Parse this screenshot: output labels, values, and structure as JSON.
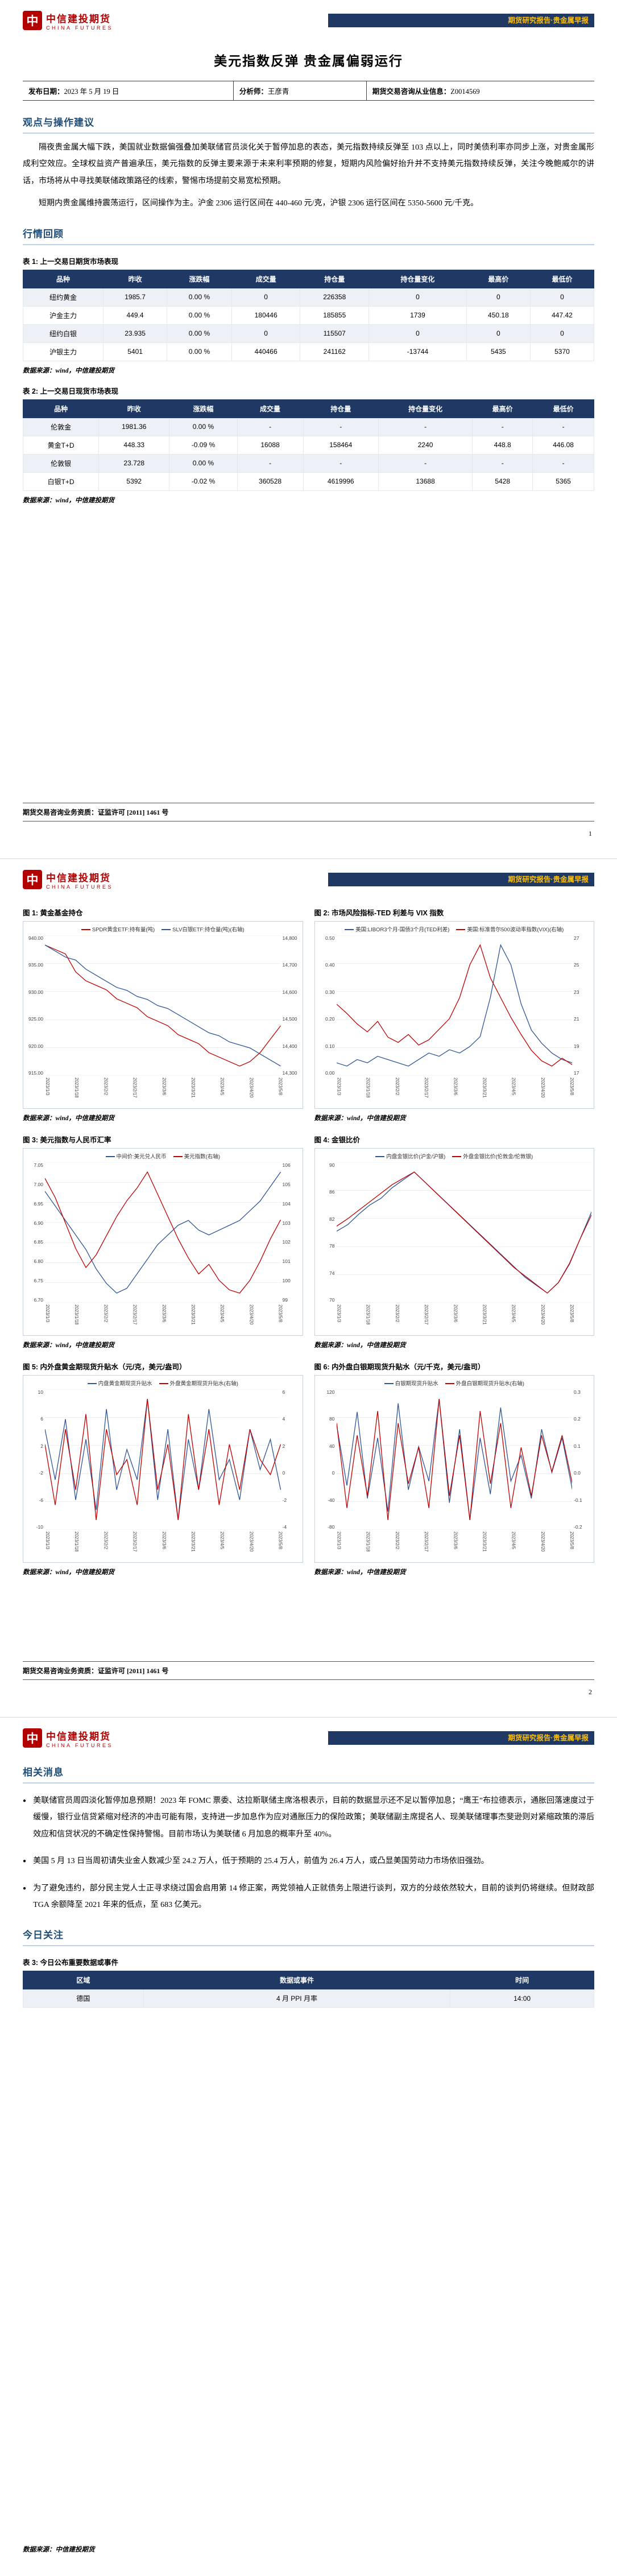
{
  "brand": {
    "glyph": "中",
    "name_cn": "中信建投期货",
    "name_en": "CHINA FUTURES",
    "band_text": "期货研究报告·贵金属早报"
  },
  "colors": {
    "band_navy": "#1f3864",
    "band_gold": "#ffc000",
    "brand_red": "#b30000",
    "heading_blue": "#1f4e79",
    "series_red": "#c00000",
    "series_blue": "#2f5597"
  },
  "footer": {
    "license": "期货交易咨询业务资质：证监许可 [2011] 1461 号",
    "page1_number": "1",
    "page2_number": "2",
    "source_note": "数据来源：中信建投期货"
  },
  "page1": {
    "title": "美元指数反弹  贵金属偏弱运行",
    "meta": {
      "publish_label": "发布日期：",
      "publish_value": "2023 年 5 月 19 日",
      "analyst_label": "分析师：",
      "analyst_value": "王彦青",
      "license_label": "期货交易咨询从业信息：",
      "license_value": "Z0014569"
    },
    "section1_title": "观点与操作建议",
    "paragraphs": [
      "隔夜贵金属大幅下跌，美国就业数据偏强叠加美联储官员淡化关于暂停加息的表态，美元指数持续反弹至 103 点以上，同时美债利率亦同步上涨，对贵金属形成利空效应。全球权益资产普遍承压，美元指数的反弹主要来源于未来利率预期的修复，短期内风险偏好抬升并不支持美元指数持续反弹，关注今晚鲍威尔的讲话，市场将从中寻找美联储政策路径的线索，警惕市场提前交易宽松预期。",
      "短期内贵金属维持震荡运行，区间操作为主。沪金 2306 运行区间在 440-460 元/克，沪银 2306 运行区间在 5350-5600 元/千克。"
    ],
    "section2_title": "行情回顾",
    "source_note": "数据来源：wind，中信建投期货",
    "table1": {
      "caption": "表 1: 上一交易日期货市场表现",
      "columns": [
        "品种",
        "昨收",
        "涨跌幅",
        "成交量",
        "持仓量",
        "持仓量变化",
        "最高价",
        "最低价"
      ],
      "rows": [
        [
          "纽约黄金",
          "1985.7",
          "0.00 %",
          "0",
          "226358",
          "0",
          "0",
          "0"
        ],
        [
          "沪金主力",
          "449.4",
          "0.00 %",
          "180446",
          "185855",
          "1739",
          "450.18",
          "447.42"
        ],
        [
          "纽约白银",
          "23.935",
          "0.00 %",
          "0",
          "115507",
          "0",
          "0",
          "0"
        ],
        [
          "沪银主力",
          "5401",
          "0.00 %",
          "440466",
          "241162",
          "-13744",
          "5435",
          "5370"
        ]
      ]
    },
    "table2": {
      "caption": "表 2: 上一交易日现货市场表现",
      "columns": [
        "品种",
        "昨收",
        "涨跌幅",
        "成交量",
        "持仓量",
        "持仓量变化",
        "最高价",
        "最低价"
      ],
      "rows": [
        [
          "伦敦金",
          "1981.36",
          "0.00 %",
          "-",
          "-",
          "-",
          "-",
          "-"
        ],
        [
          "黄金T+D",
          "448.33",
          "-0.09 %",
          "16088",
          "158464",
          "2240",
          "448.8",
          "446.08"
        ],
        [
          "伦敦银",
          "23.728",
          "0.00 %",
          "-",
          "-",
          "-",
          "-",
          "-"
        ],
        [
          "白银T+D",
          "5392",
          "-0.02 %",
          "360528",
          "4619996",
          "13688",
          "5428",
          "5365"
        ]
      ]
    }
  },
  "page2": {
    "charts": [
      {
        "type": "line",
        "caption": "图 1: 黄金基金持仓",
        "source": "数据来源：wind，中信建投期货",
        "left_ticks": [
          "940.00",
          "935.00",
          "930.00",
          "925.00",
          "920.00",
          "915.00"
        ],
        "right_ticks": [
          "14,800",
          "14,700",
          "14,600",
          "14,500",
          "14,400",
          "14,300"
        ],
        "x_labels": [
          "2023/1/3",
          "2023/1/18",
          "2023/2/2",
          "2023/2/17",
          "2023/3/6",
          "2023/3/21",
          "2023/4/5",
          "2023/4/20",
          "2023/5/8"
        ],
        "series": [
          {
            "name": "SPDR黄金ETF:持有量(吨)",
            "color": "#c00000",
            "axis": "left",
            "values": [
              934,
              933.5,
              933,
              931,
              930,
              929.5,
              929,
              928,
              927.5,
              927,
              926,
              925.5,
              925,
              924,
              923.5,
              923,
              922,
              921.5,
              921,
              920.5,
              921,
              922,
              923.5,
              925
            ]
          },
          {
            "name": "SLV白银ETF:持仓量(吨)(右轴)",
            "color": "#2f5597",
            "axis": "right",
            "values": [
              14740,
              14720,
              14700,
              14690,
              14660,
              14640,
              14620,
              14600,
              14590,
              14570,
              14560,
              14540,
              14530,
              14510,
              14490,
              14470,
              14450,
              14440,
              14420,
              14410,
              14400,
              14380,
              14360,
              14340
            ]
          }
        ]
      },
      {
        "type": "line",
        "caption": "图 2: 市场风险指标-TED 利差与 VIX 指数",
        "source": "数据来源：wind，中信建投期货",
        "left_ticks": [
          "0.50",
          "0.40",
          "0.30",
          "0.20",
          "0.10",
          "0.00"
        ],
        "right_ticks": [
          "27",
          "25",
          "23",
          "21",
          "19",
          "17"
        ],
        "x_labels": [
          "2023/1/3",
          "2023/1/18",
          "2023/2/2",
          "2023/2/17",
          "2023/3/6",
          "2023/3/21",
          "2023/4/5",
          "2023/4/20",
          "2023/5/8"
        ],
        "series": [
          {
            "name": "美国:LIBOR3个月-国债3个月(TED利差)",
            "color": "#2f5597",
            "axis": "left",
            "values": [
              0.1,
              0.09,
              0.11,
              0.1,
              0.12,
              0.11,
              0.1,
              0.09,
              0.11,
              0.13,
              0.12,
              0.14,
              0.13,
              0.15,
              0.18,
              0.3,
              0.46,
              0.4,
              0.28,
              0.2,
              0.16,
              0.13,
              0.11,
              0.1
            ]
          },
          {
            "name": "美国:标准普尔500波动率指数(VIX)(右轴)",
            "color": "#c00000",
            "axis": "right",
            "values": [
              21.5,
              20.8,
              20.0,
              19.4,
              20.2,
              19.0,
              18.6,
              19.2,
              18.4,
              18.8,
              19.6,
              20.4,
              22.0,
              24.5,
              26.0,
              23.5,
              22.0,
              20.5,
              19.2,
              18.0,
              17.2,
              16.8,
              17.4,
              16.9
            ]
          }
        ]
      },
      {
        "type": "line",
        "caption": "图 3: 美元指数与人民币汇率",
        "source": "数据来源：wind，中信建投期货",
        "left_ticks": [
          "7.05",
          "7.00",
          "6.95",
          "6.90",
          "6.85",
          "6.80",
          "6.75",
          "6.70"
        ],
        "right_ticks": [
          "106",
          "105",
          "104",
          "103",
          "102",
          "101",
          "100",
          "99"
        ],
        "x_labels": [
          "2023/1/3",
          "2023/1/18",
          "2023/2/2",
          "2023/2/17",
          "2023/3/6",
          "2023/3/21",
          "2023/4/5",
          "2023/4/20",
          "2023/5/8"
        ],
        "series": [
          {
            "name": "中间价:美元兑人民币",
            "color": "#2f5597",
            "axis": "left",
            "values": [
              6.96,
              6.93,
              6.9,
              6.87,
              6.84,
              6.8,
              6.77,
              6.75,
              6.76,
              6.79,
              6.82,
              6.85,
              6.87,
              6.89,
              6.9,
              6.88,
              6.87,
              6.88,
              6.89,
              6.9,
              6.92,
              6.94,
              6.97,
              7.0
            ]
          },
          {
            "name": "美元指数(右轴)",
            "color": "#c00000",
            "axis": "right",
            "values": [
              104.6,
              104.0,
              103.2,
              102.4,
              101.8,
              102.2,
              102.8,
              103.4,
              103.9,
              104.3,
              104.8,
              104.1,
              103.4,
              102.7,
              102.1,
              101.6,
              101.9,
              101.4,
              101.1,
              101.0,
              101.4,
              102.0,
              102.7,
              103.3
            ]
          }
        ]
      },
      {
        "type": "line",
        "caption": "图 4: 金银比价",
        "source": "数据来源：wind，中信建投期货",
        "left_ticks": [
          "90",
          "86",
          "82",
          "78",
          "74",
          "70"
        ],
        "right_ticks": [],
        "x_labels": [
          "2023/1/3",
          "2023/1/18",
          "2023/2/2",
          "2023/2/17",
          "2023/3/6",
          "2023/3/21",
          "2023/4/5",
          "2023/4/20",
          "2023/5/8"
        ],
        "series": [
          {
            "name": "内盘金银比价(沪金/沪银)",
            "color": "#2f5597",
            "axis": "left",
            "values": [
              82.5,
              83.0,
              83.8,
              84.5,
              85.0,
              85.8,
              86.4,
              87.0,
              86.2,
              85.4,
              84.6,
              83.8,
              83.0,
              82.2,
              81.4,
              80.6,
              79.8,
              79.0,
              78.4,
              77.8,
              78.6,
              80.0,
              82.0,
              84.0
            ]
          },
          {
            "name": "外盘金银比价(伦敦金/伦敦银)",
            "color": "#c00000",
            "axis": "left",
            "values": [
              83.5,
              84.2,
              85.0,
              85.8,
              86.6,
              87.4,
              88.0,
              88.6,
              87.6,
              86.6,
              85.6,
              84.6,
              83.6,
              82.6,
              81.6,
              80.6,
              79.6,
              78.8,
              78.0,
              77.2,
              78.2,
              80.0,
              82.4,
              84.6
            ]
          }
        ]
      },
      {
        "type": "line",
        "caption": "图 5: 内外盘黄金期现货升贴水（元/克，美元/盎司）",
        "source": "数据来源：wind，中信建投期货",
        "left_ticks": [
          "10",
          "6",
          "2",
          "-2",
          "-6",
          "-10"
        ],
        "right_ticks": [
          "6",
          "4",
          "2",
          "0",
          "-2",
          "-4"
        ],
        "x_labels": [
          "2023/1/3",
          "2023/1/18",
          "2023/2/2",
          "2023/2/17",
          "2023/3/6",
          "2023/3/21",
          "2023/4/5",
          "2023/4/20",
          "2023/5/8"
        ],
        "series": [
          {
            "name": "内盘黄金期现货升贴水",
            "color": "#2f5597",
            "axis": "left",
            "values": [
              3,
              -2,
              4,
              -4,
              2,
              -5,
              5,
              -3,
              1,
              -2,
              6,
              -4,
              3,
              -6,
              2,
              -3,
              5,
              -2,
              0,
              -4,
              3,
              -1,
              2,
              -3
            ]
          },
          {
            "name": "外盘黄金期现货升贴水(右轴)",
            "color": "#c00000",
            "axis": "right",
            "values": [
              1,
              -3,
              2,
              -2,
              3,
              -4,
              2,
              -1,
              0,
              -3,
              4,
              -2,
              1,
              -4,
              3,
              -2,
              2,
              -3,
              1,
              -2,
              2,
              0,
              -1,
              1
            ]
          }
        ]
      },
      {
        "type": "line",
        "caption": "图 6: 内外盘白银期现货升贴水（元/千克，美元/盎司）",
        "source": "数据来源：wind，中信建投期货",
        "left_ticks": [
          "120",
          "80",
          "40",
          "0",
          "-40",
          "-80"
        ],
        "right_ticks": [
          "0.3",
          "0.2",
          "0.1",
          "0.0",
          "-0.1",
          "-0.2"
        ],
        "x_labels": [
          "2023/1/3",
          "2023/1/18",
          "2023/2/2",
          "2023/2/17",
          "2023/3/6",
          "2023/3/21",
          "2023/4/5",
          "2023/4/20",
          "2023/5/8"
        ],
        "series": [
          {
            "name": "白银期现货升贴水",
            "color": "#2f5597",
            "axis": "left",
            "values": [
              40,
              -30,
              55,
              -45,
              25,
              -60,
              65,
              -35,
              15,
              -25,
              70,
              -50,
              35,
              -70,
              25,
              -40,
              60,
              -25,
              5,
              -45,
              35,
              -15,
              25,
              -35
            ]
          },
          {
            "name": "外盘白银期现货升贴水(右轴)",
            "color": "#c00000",
            "axis": "right",
            "values": [
              0.15,
              -0.2,
              0.1,
              -0.15,
              0.2,
              -0.25,
              0.15,
              -0.1,
              0.05,
              -0.2,
              0.25,
              -0.15,
              0.1,
              -0.25,
              0.2,
              -0.1,
              0.15,
              -0.2,
              0.05,
              -0.15,
              0.1,
              -0.05,
              0.1,
              -0.1
            ]
          }
        ]
      }
    ]
  },
  "page3": {
    "section1_title": "相关消息",
    "bullets": [
      "美联储官员周四淡化暂停加息预期！2023 年 FOMC 票委、达拉斯联储主席洛根表示，目前的数据显示还不足以暂停加息；“鹰王”布拉德表示，通胀回落速度过于缓慢，银行业信贷紧缩对经济的冲击可能有限，支持进一步加息作为应对通胀压力的保险政策；美联储副主席提名人、现美联储理事杰斐逊则对紧缩政策的滞后效应和信贷状况的不确定性保持警惕。目前市场认为美联储 6 月加息的概率升至 40%。",
      "美国 5 月 13 日当周初请失业金人数减少至 24.2 万人，低于预期的 25.4 万人，前值为 26.4 万人，或凸显美国劳动力市场依旧强劲。",
      "为了避免违约，部分民主党人士正寻求绕过国会启用第 14 修正案，两党领袖人正就债务上限进行谈判，双方的分歧依然较大，目前的谈判仍将继续。但财政部 TGA 余额降至 2021 年来的低点，至 683 亿美元。"
    ],
    "section2_title": "今日关注",
    "table3": {
      "caption": "表 3: 今日公布重要数据或事件",
      "columns": [
        "区域",
        "数据或事件",
        "时间"
      ],
      "rows": [
        [
          "德国",
          "4 月 PPI 月率",
          "14:00"
        ]
      ]
    }
  }
}
